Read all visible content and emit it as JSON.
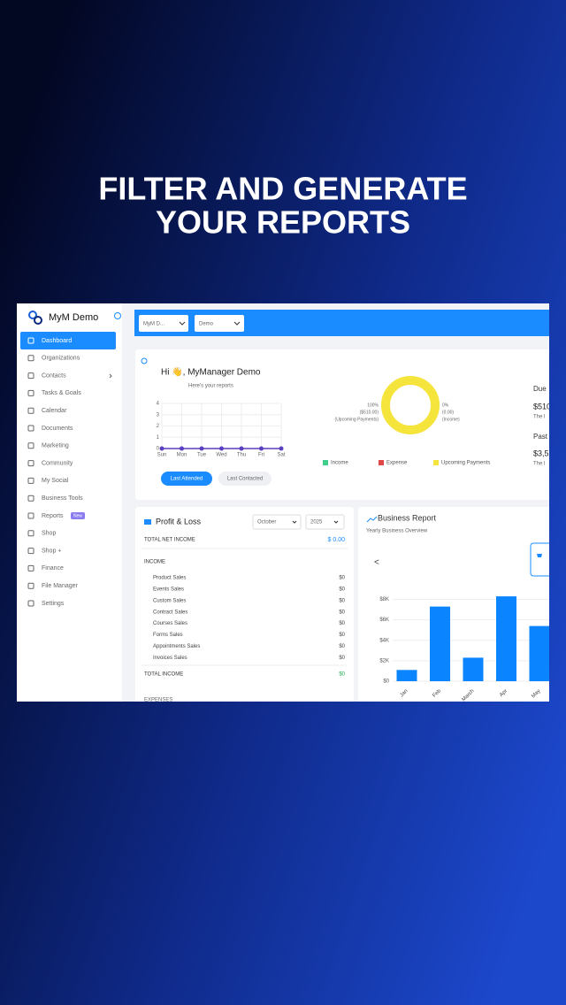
{
  "headline": {
    "lines": [
      "FILTER AND GENERATE",
      "YOUR REPORTS"
    ]
  },
  "app": {
    "brand": "MyM Demo",
    "menu": [
      "Dashboard",
      "Organizations",
      "Contacts",
      "Tasks & Goals",
      "Calendar",
      "Documents",
      "Marketing",
      "Community",
      "My Social",
      "Business Tools",
      "Reports",
      "Shop",
      "Shop +",
      "Finance",
      "File Manager",
      "Settings"
    ],
    "menu_badge": "New",
    "topbar": {
      "org_select": "MyM D...",
      "user_select": "Demo"
    },
    "welcome": {
      "greeting": "Hi 👋, MyManager Demo",
      "subtitle": "Here's your reports",
      "buttons": [
        "Last Attended",
        "Last Contacted"
      ]
    },
    "attendance_chart": {
      "type": "line",
      "categories": [
        "Sun",
        "Mon",
        "Tue",
        "Wed",
        "Thu",
        "Fri",
        "Sat"
      ],
      "values": [
        0,
        0,
        0,
        0,
        0,
        0,
        0
      ],
      "ylim": [
        0,
        4
      ],
      "yticks": [
        0,
        1,
        2,
        3,
        4
      ],
      "color": "#5a3fc0",
      "grid": true
    },
    "payments_donut": {
      "type": "pie",
      "categories": [
        "Income",
        "Expense",
        "Upcoming Payments"
      ],
      "values": [
        0,
        0,
        100
      ],
      "colors": [
        "#3ecf8e",
        "#e04848",
        "#f5e43c"
      ],
      "left_label": [
        "100%",
        "($510.00)",
        "(Upcoming Payments)"
      ],
      "right_label": [
        "0%",
        "(0.00)",
        "(Income)"
      ]
    },
    "summary": {
      "due": "Due",
      "due_amount": "$510",
      "due_note": "The l",
      "past": "Past",
      "past_amount": "$3,5",
      "past_note": "The l"
    },
    "profit_loss": {
      "title": "Profit & Loss",
      "month": "October",
      "year": "2025",
      "net_label": "TOTAL NET INCOME",
      "net_value": "$ 0.00",
      "income_header": "INCOME",
      "rows": [
        [
          "Product Sales",
          "$0"
        ],
        [
          "Events Sales",
          "$0"
        ],
        [
          "Custom Sales",
          "$0"
        ],
        [
          "Contract Sales",
          "$0"
        ],
        [
          "Courses Sales",
          "$0"
        ],
        [
          "Forms Sales",
          "$0"
        ],
        [
          "Appointments Sales",
          "$0"
        ],
        [
          "Invoices Sales",
          "$0"
        ]
      ],
      "total_label": "TOTAL INCOME",
      "total_value": "$0",
      "expenses_header": "EXPENSES"
    },
    "business_report": {
      "type": "bar",
      "title": "Business Report",
      "subtitle": "Yearly Business Overview",
      "nav_prev": "<",
      "categories": [
        "Jan",
        "Feb",
        "March",
        "Apr",
        "May"
      ],
      "values": [
        1100,
        7300,
        2300,
        8300,
        5400
      ],
      "color": "#0a84ff",
      "ylim": [
        0,
        9000
      ],
      "yticks": [
        {
          "value": 0,
          "label": "$0"
        },
        {
          "value": 2000,
          "label": "$2K"
        },
        {
          "value": 4000,
          "label": "$4K"
        },
        {
          "value": 6000,
          "label": "$6K"
        },
        {
          "value": 8000,
          "label": "$8K"
        }
      ]
    }
  }
}
